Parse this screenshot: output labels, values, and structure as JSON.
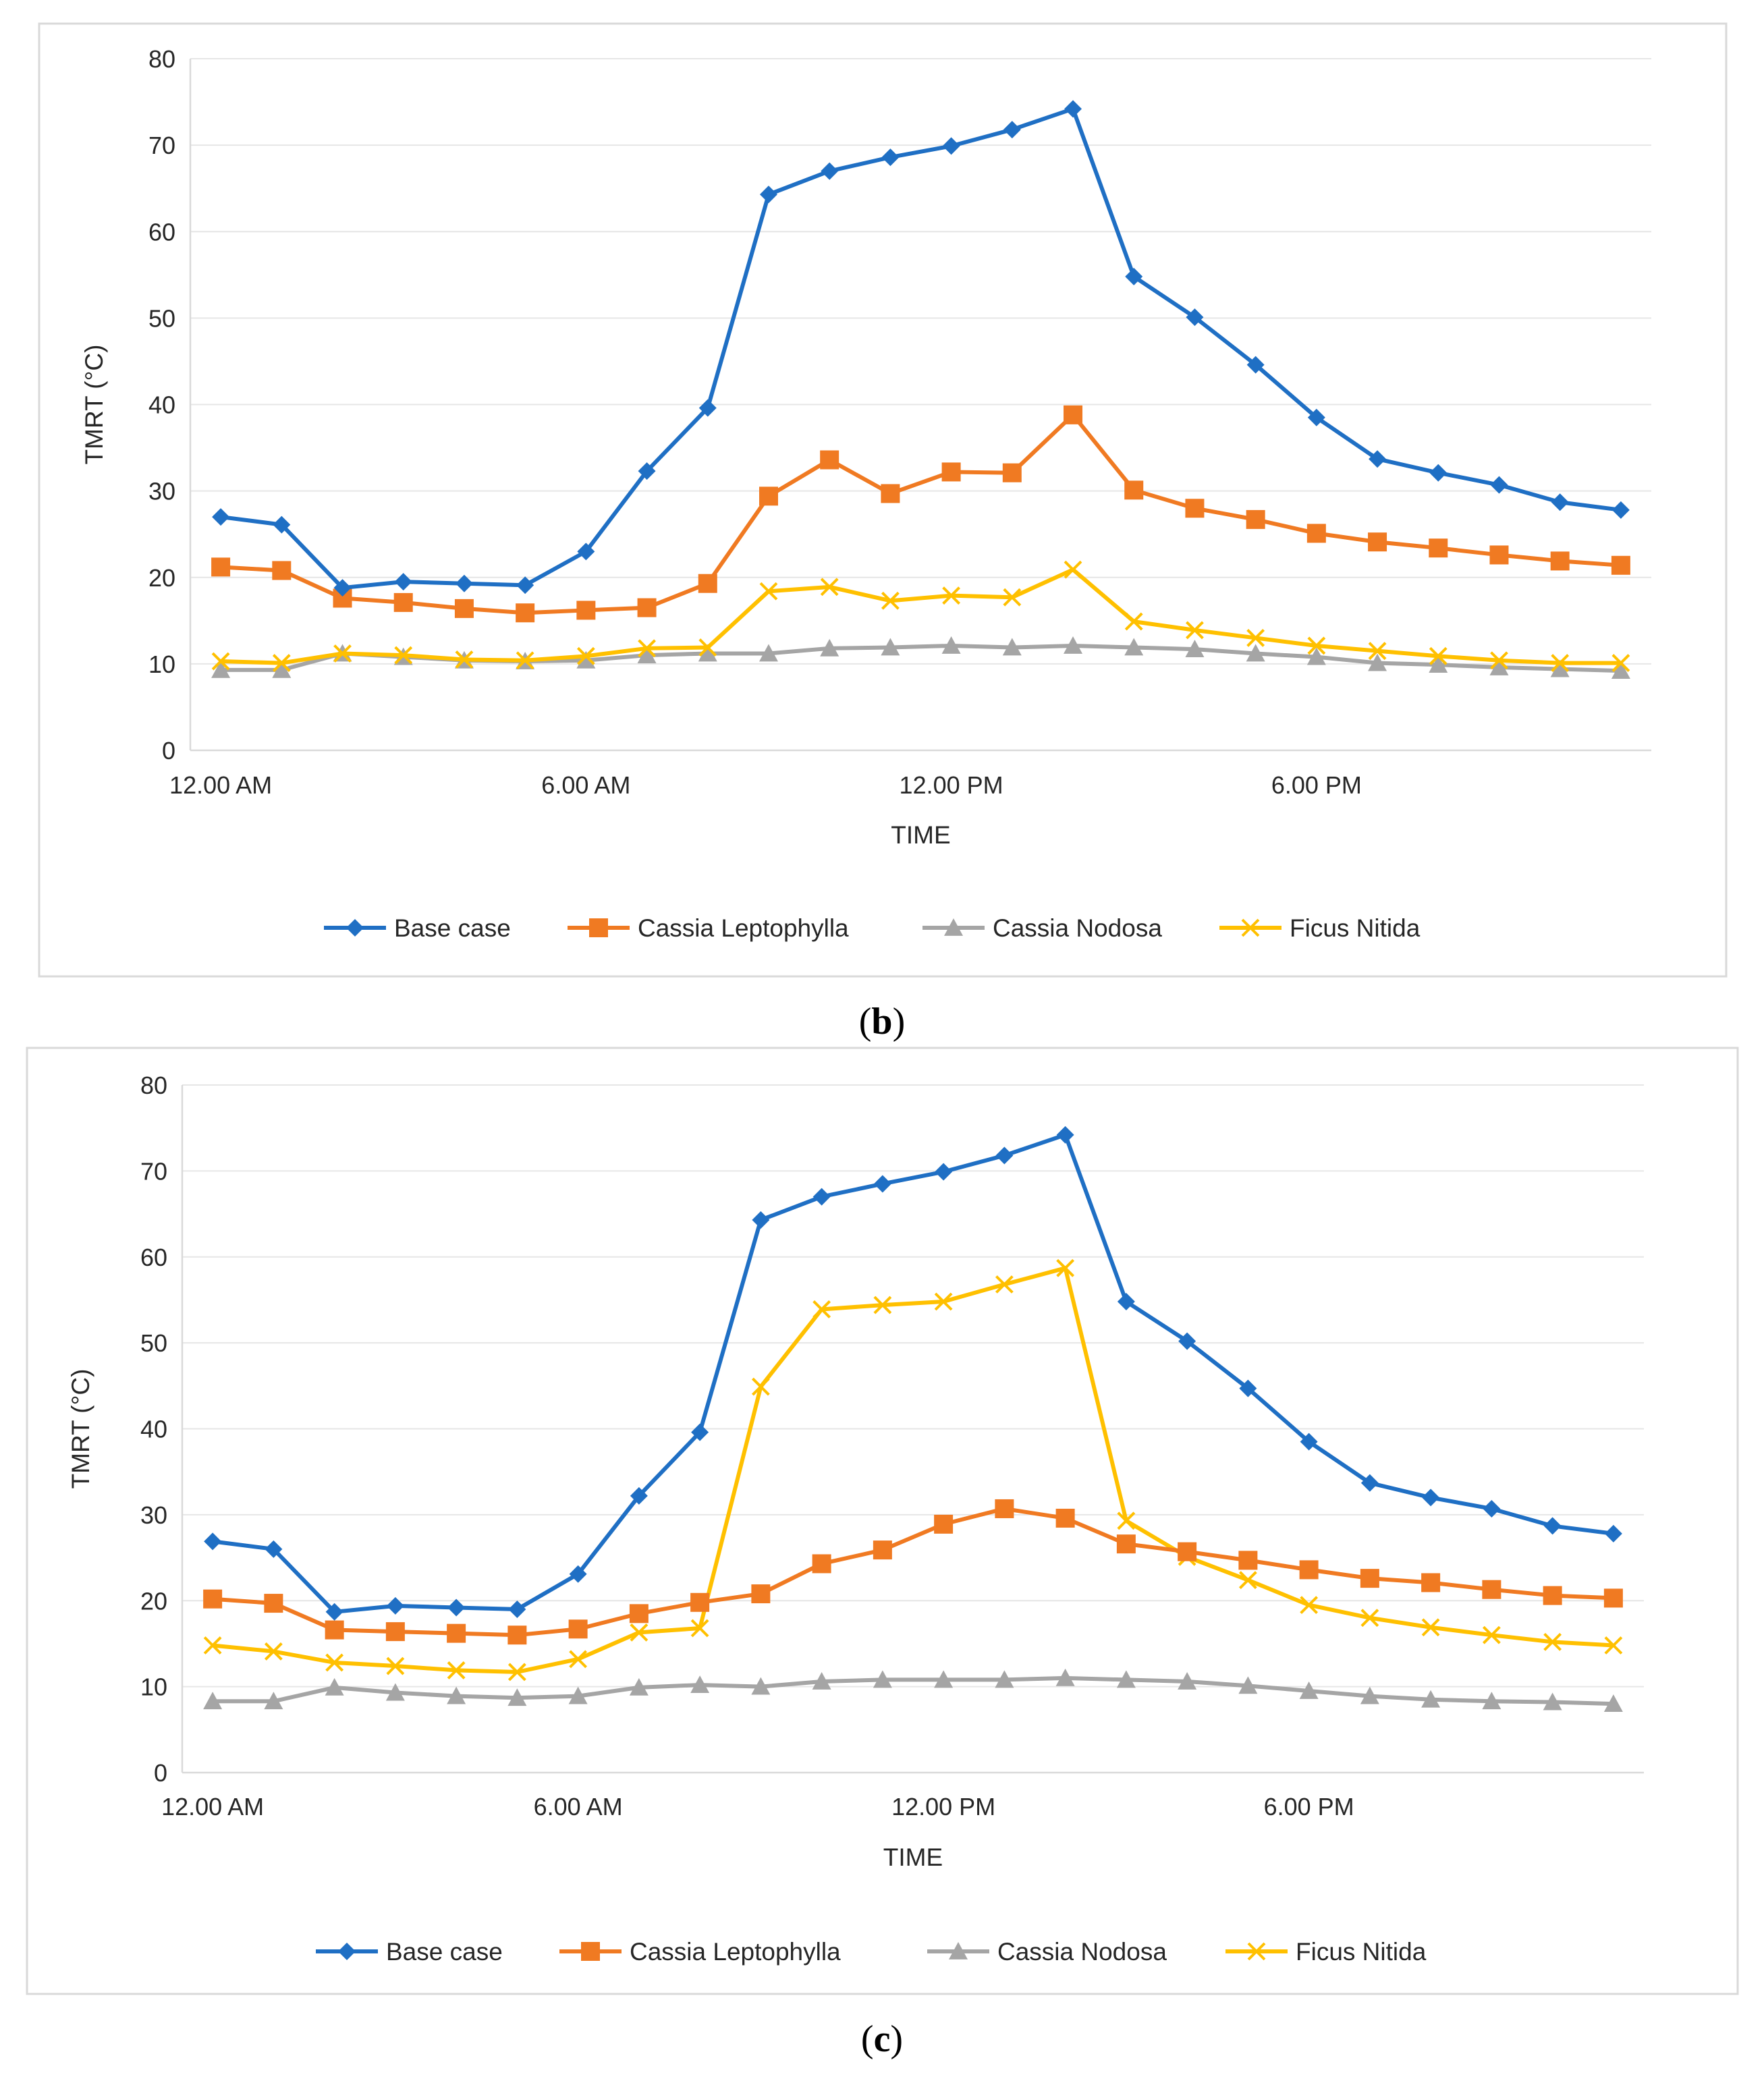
{
  "series_styles": [
    {
      "name": "Base case",
      "color": "#1f6fc4",
      "marker": "diamond"
    },
    {
      "name": "Cassia Leptophylla",
      "color": "#f07a22",
      "marker": "square"
    },
    {
      "name": "Cassia Nodosa",
      "color": "#a5a5a5",
      "marker": "triangle"
    },
    {
      "name": "Ficus Nitida",
      "color": "#ffc000",
      "marker": "x"
    }
  ],
  "chart_data": [
    {
      "type": "line",
      "panel": "b",
      "caption": {
        "open": "(",
        "letter": "b",
        "close": ")"
      },
      "title": "",
      "xlabel": "TIME",
      "ylabel": "TMRT (°C)",
      "ylim": [
        0,
        80
      ],
      "yticks": [
        "0",
        "10",
        "20",
        "30",
        "40",
        "50",
        "60",
        "70",
        "80"
      ],
      "x": [
        0,
        1,
        2,
        3,
        4,
        5,
        6,
        7,
        8,
        9,
        10,
        11,
        12,
        13,
        14,
        15,
        16,
        17,
        18,
        19,
        20,
        21,
        22,
        23
      ],
      "xlim": [
        -0.5,
        23.5
      ],
      "xticks": [
        {
          "x": 0,
          "label": "12.00 AM"
        },
        {
          "x": 6,
          "label": "6.00 AM"
        },
        {
          "x": 12,
          "label": "12.00 PM"
        },
        {
          "x": 18,
          "label": "6.00 PM"
        }
      ],
      "legend": "bottom",
      "grid": true,
      "series": [
        {
          "name": "Base case",
          "values": [
            27.0,
            26.1,
            18.8,
            19.5,
            19.3,
            19.1,
            23.0,
            32.3,
            39.6,
            64.3,
            67.0,
            68.6,
            69.9,
            71.8,
            74.2,
            54.8,
            50.1,
            44.6,
            38.5,
            33.7,
            32.1,
            30.7,
            28.7,
            27.8
          ]
        },
        {
          "name": "Cassia Leptophylla",
          "values": [
            21.2,
            20.8,
            17.6,
            17.1,
            16.4,
            15.9,
            16.2,
            16.5,
            19.3,
            29.4,
            33.6,
            29.7,
            32.2,
            32.1,
            38.8,
            30.1,
            28.0,
            26.7,
            25.1,
            24.1,
            23.4,
            22.6,
            21.9,
            21.4
          ]
        },
        {
          "name": "Cassia Nodosa",
          "values": [
            9.3,
            9.3,
            11.2,
            10.8,
            10.4,
            10.3,
            10.4,
            11.0,
            11.2,
            11.2,
            11.8,
            11.9,
            12.1,
            11.9,
            12.1,
            11.9,
            11.7,
            11.2,
            10.8,
            10.1,
            9.9,
            9.6,
            9.4,
            9.2
          ]
        },
        {
          "name": "Ficus Nitida",
          "values": [
            10.3,
            10.1,
            11.2,
            11.0,
            10.5,
            10.4,
            10.9,
            11.8,
            11.9,
            18.4,
            18.9,
            17.3,
            17.9,
            17.7,
            20.9,
            14.9,
            13.9,
            13.0,
            12.1,
            11.5,
            10.9,
            10.4,
            10.1,
            10.1
          ]
        }
      ]
    },
    {
      "type": "line",
      "panel": "c",
      "caption": {
        "open": "(",
        "letter": "c",
        "close": ")"
      },
      "title": "",
      "xlabel": "TIME",
      "ylabel": "TMRT (°C)",
      "ylim": [
        0,
        80
      ],
      "yticks": [
        "0",
        "10",
        "20",
        "30",
        "40",
        "50",
        "60",
        "70",
        "80"
      ],
      "x": [
        0,
        1,
        2,
        3,
        4,
        5,
        6,
        7,
        8,
        9,
        10,
        11,
        12,
        13,
        14,
        15,
        16,
        17,
        18,
        19,
        20,
        21,
        22,
        23
      ],
      "xlim": [
        -0.5,
        23.5
      ],
      "xticks": [
        {
          "x": 0,
          "label": "12.00 AM"
        },
        {
          "x": 6,
          "label": "6.00 AM"
        },
        {
          "x": 12,
          "label": "12.00 PM"
        },
        {
          "x": 18,
          "label": "6.00 PM"
        }
      ],
      "legend": "bottom",
      "grid": true,
      "series": [
        {
          "name": "Base case",
          "values": [
            26.9,
            26.0,
            18.7,
            19.4,
            19.2,
            19.0,
            23.1,
            32.2,
            39.6,
            64.3,
            67.0,
            68.5,
            69.9,
            71.8,
            74.2,
            54.8,
            50.2,
            44.7,
            38.5,
            33.7,
            32.0,
            30.7,
            28.7,
            27.8
          ]
        },
        {
          "name": "Cassia Leptophylla",
          "values": [
            20.2,
            19.7,
            16.6,
            16.4,
            16.2,
            16.0,
            16.7,
            18.5,
            19.8,
            20.8,
            24.3,
            25.9,
            28.9,
            30.7,
            29.6,
            26.6,
            25.7,
            24.7,
            23.6,
            22.6,
            22.1,
            21.3,
            20.6,
            20.3
          ]
        },
        {
          "name": "Cassia Nodosa",
          "values": [
            8.3,
            8.3,
            9.9,
            9.3,
            8.9,
            8.7,
            8.9,
            9.9,
            10.2,
            10.0,
            10.6,
            10.8,
            10.8,
            10.8,
            11.0,
            10.8,
            10.6,
            10.1,
            9.5,
            8.9,
            8.5,
            8.3,
            8.2,
            8.0
          ]
        },
        {
          "name": "Ficus Nitida",
          "values": [
            14.8,
            14.1,
            12.8,
            12.4,
            11.9,
            11.7,
            13.2,
            16.3,
            16.8,
            44.9,
            53.9,
            54.4,
            54.8,
            56.8,
            58.7,
            29.3,
            25.1,
            22.4,
            19.5,
            18.0,
            16.9,
            16.0,
            15.2,
            14.8
          ]
        }
      ]
    }
  ]
}
